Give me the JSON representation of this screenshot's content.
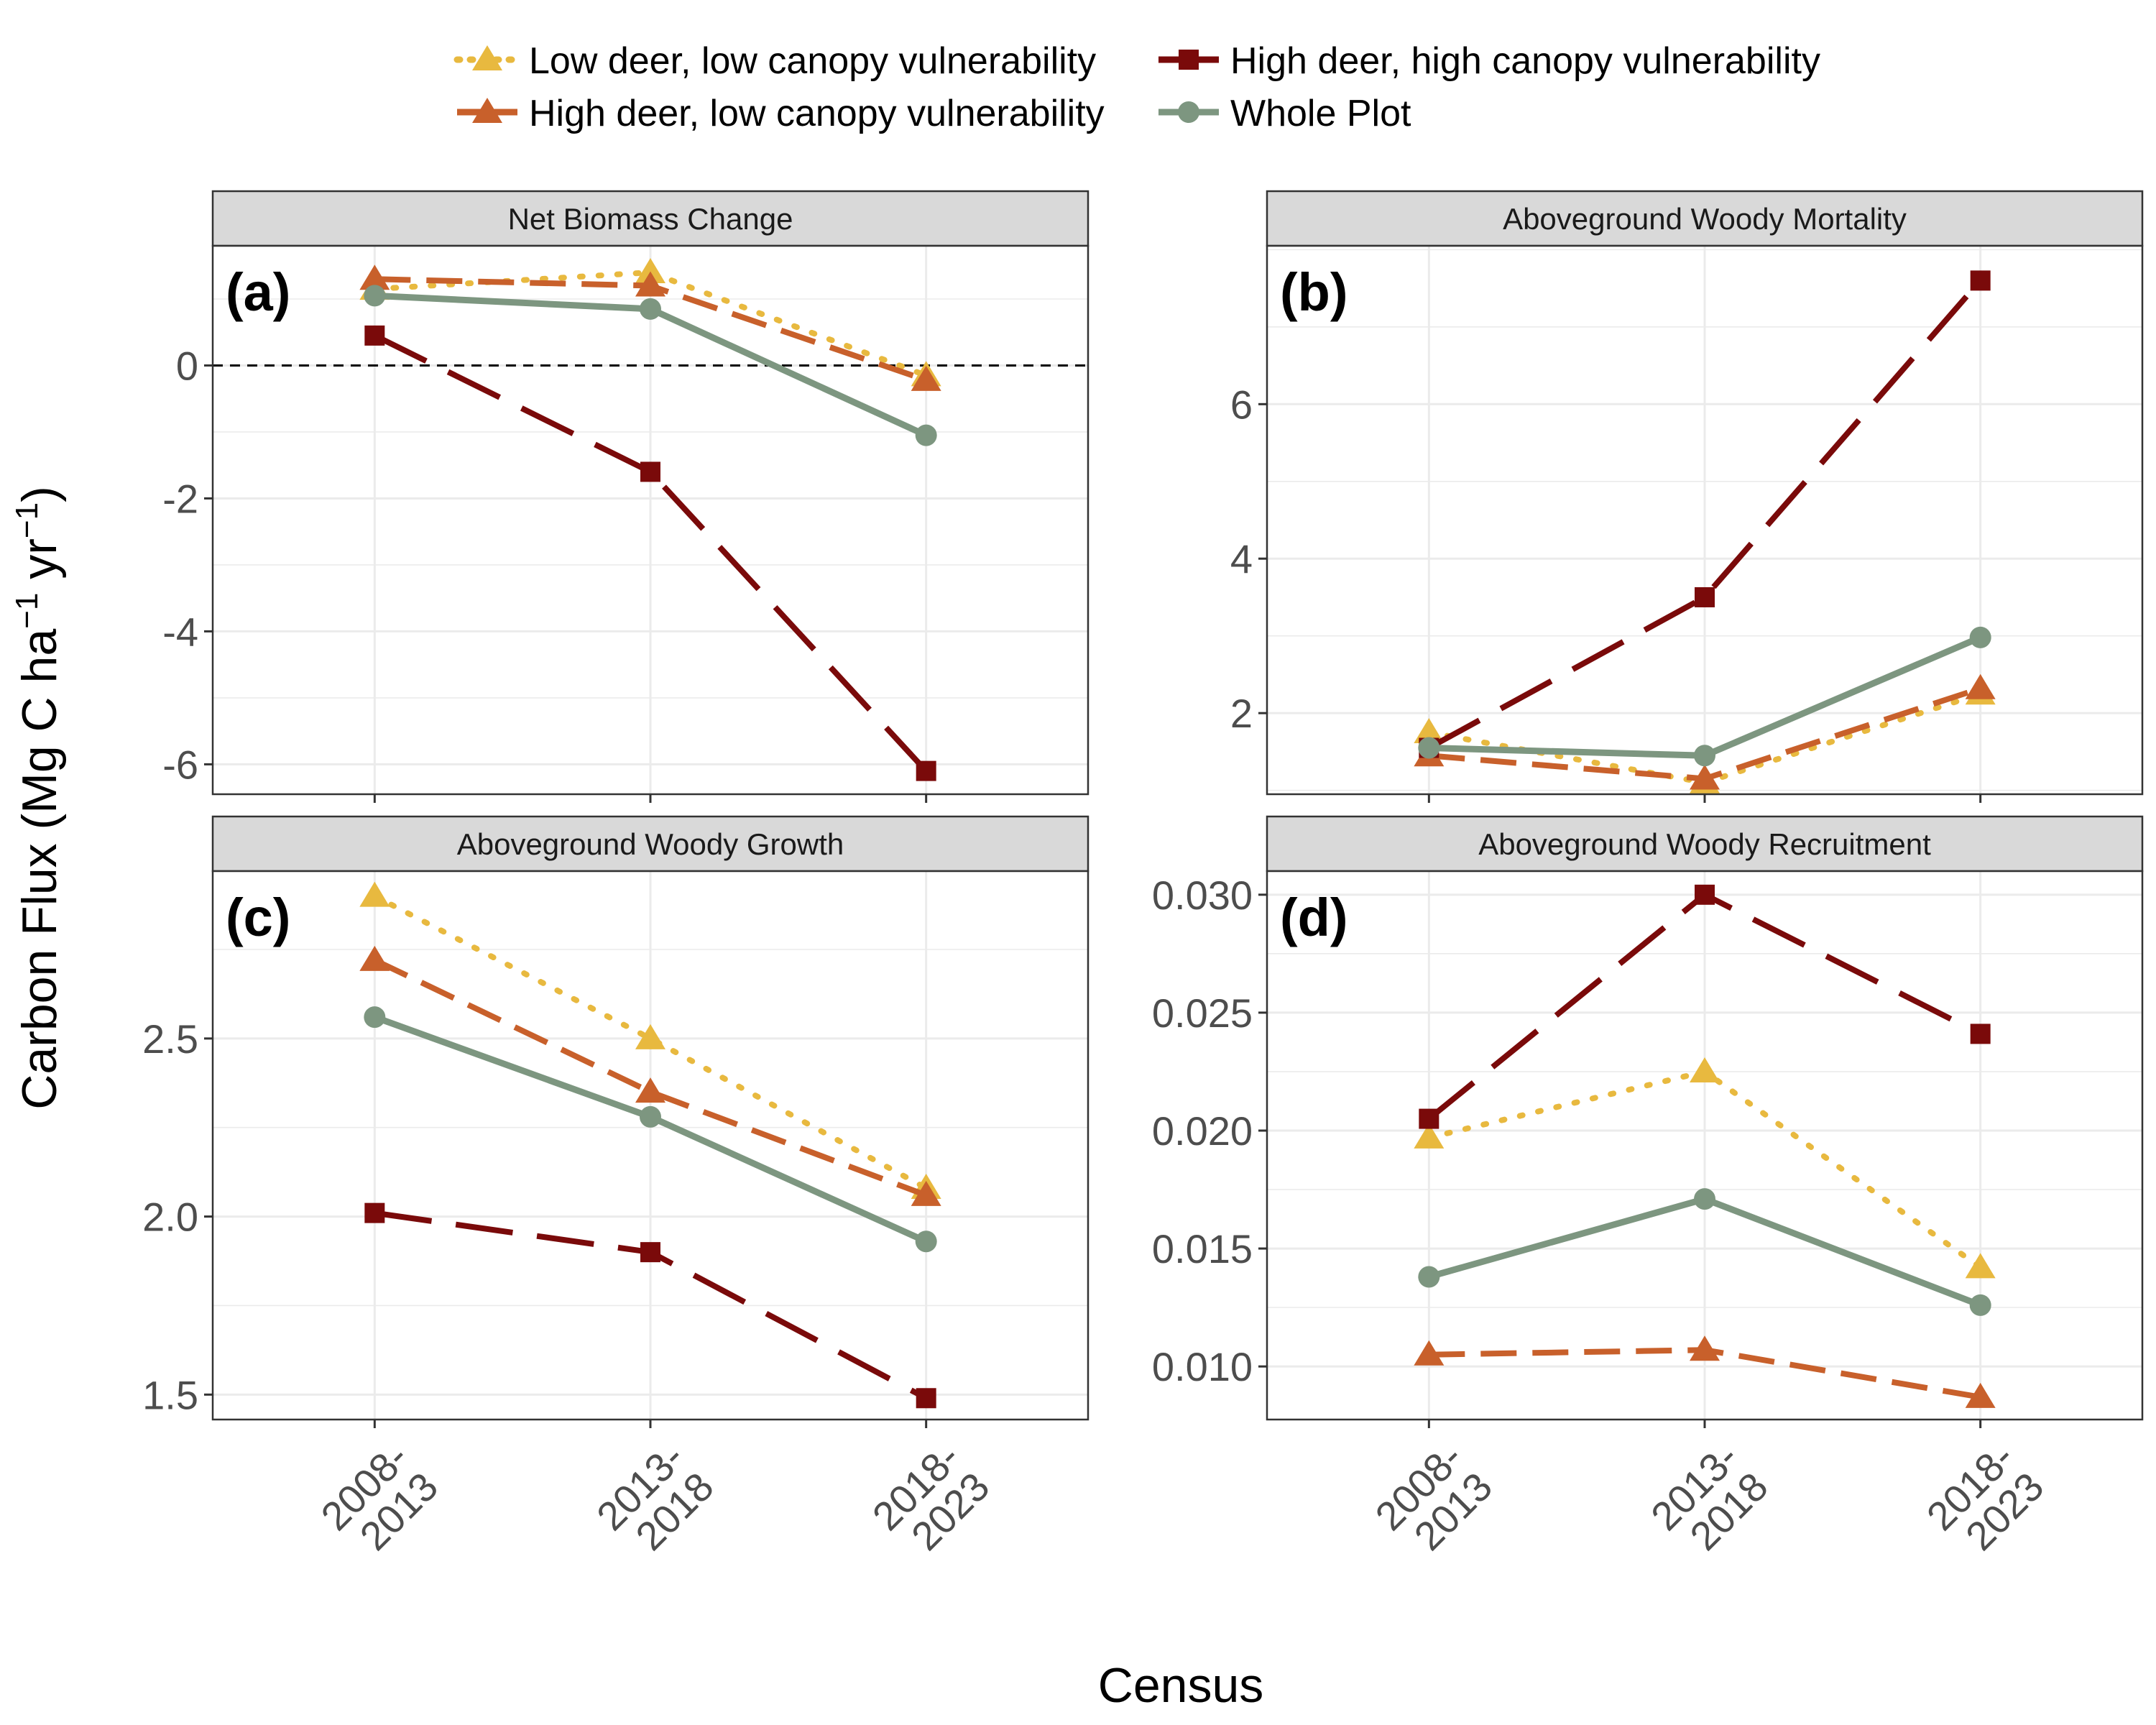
{
  "figure": {
    "ylabel_main": "Carbon Flux (Mg C ha",
    "ylabel_exp1": "−1",
    "ylabel_mid": " yr",
    "ylabel_exp2": "−1",
    "ylabel_end": ")",
    "xlabel": "Census"
  },
  "legend": {
    "position": "top",
    "items": [
      {
        "key": "lowlow",
        "label": "Low deer, low canopy vulnerability"
      },
      {
        "key": "highhigh",
        "label": "High deer, high canopy vulnerability"
      },
      {
        "key": "highlow",
        "label": "High deer, low canopy vulnerability"
      },
      {
        "key": "whole",
        "label": "Whole Plot"
      }
    ]
  },
  "series_styles": {
    "lowlow": {
      "color": "#E8B93F",
      "dash": "dotted",
      "marker": "triangle"
    },
    "highlow": {
      "color": "#C8602B",
      "dash": "dashed",
      "marker": "triangle"
    },
    "highhigh": {
      "color": "#7A0A0A",
      "dash": "longdash",
      "marker": "square"
    },
    "whole": {
      "color": "#7D9680",
      "dash": "solid",
      "marker": "circle"
    }
  },
  "x_categories": [
    [
      "2008-",
      "2013"
    ],
    [
      "2013-",
      "2018"
    ],
    [
      "2018-",
      "2023"
    ]
  ],
  "chart_data": [
    {
      "type": "line",
      "tag": "(a)",
      "title": "Net Biomass Change",
      "ylim": [
        -6.45,
        1.8
      ],
      "yticks": [
        "-6",
        "-4",
        "-2",
        "0"
      ],
      "ytick_values": [
        -6,
        -4,
        -2,
        0
      ],
      "hline": 0,
      "series": [
        {
          "key": "lowlow",
          "values": [
            1.15,
            1.4,
            -0.15
          ]
        },
        {
          "key": "highlow",
          "values": [
            1.3,
            1.2,
            -0.22
          ]
        },
        {
          "key": "highhigh",
          "values": [
            0.45,
            -1.6,
            -6.1
          ]
        },
        {
          "key": "whole",
          "values": [
            1.05,
            0.85,
            -1.05
          ]
        }
      ]
    },
    {
      "type": "line",
      "tag": "(b)",
      "title": "Aboveground Woody Mortality",
      "ylim": [
        0.95,
        8.05
      ],
      "yticks": [
        "2",
        "4",
        "6"
      ],
      "ytick_values": [
        2,
        4,
        6
      ],
      "series": [
        {
          "key": "lowlow",
          "values": [
            1.75,
            1.1,
            2.25
          ]
        },
        {
          "key": "highlow",
          "values": [
            1.45,
            1.15,
            2.32
          ]
        },
        {
          "key": "highhigh",
          "values": [
            1.55,
            3.5,
            7.6
          ]
        },
        {
          "key": "whole",
          "values": [
            1.55,
            1.45,
            2.98
          ]
        }
      ]
    },
    {
      "type": "line",
      "tag": "(c)",
      "title": "Aboveground Woody Growth",
      "ylim": [
        1.43,
        2.97
      ],
      "yticks": [
        "1.5",
        "2.0",
        "2.5"
      ],
      "ytick_values": [
        1.5,
        2.0,
        2.5
      ],
      "series": [
        {
          "key": "lowlow",
          "values": [
            2.9,
            2.5,
            2.08
          ]
        },
        {
          "key": "highlow",
          "values": [
            2.72,
            2.35,
            2.06
          ]
        },
        {
          "key": "highhigh",
          "values": [
            2.01,
            1.9,
            1.49
          ]
        },
        {
          "key": "whole",
          "values": [
            2.56,
            2.28,
            1.93
          ]
        }
      ]
    },
    {
      "type": "line",
      "tag": "(d)",
      "title": "Aboveground Woody Recruitment",
      "ylim": [
        0.00775,
        0.031
      ],
      "yticks": [
        "0.010",
        "0.015",
        "0.020",
        "0.025",
        "0.030"
      ],
      "ytick_values": [
        0.01,
        0.015,
        0.02,
        0.025,
        0.03
      ],
      "series": [
        {
          "key": "lowlow",
          "values": [
            0.0197,
            0.0225,
            0.0142
          ]
        },
        {
          "key": "highlow",
          "values": [
            0.0105,
            0.0107,
            0.0087
          ]
        },
        {
          "key": "highhigh",
          "values": [
            0.0205,
            0.03,
            0.0241
          ]
        },
        {
          "key": "whole",
          "values": [
            0.0138,
            0.0171,
            0.0126
          ]
        }
      ]
    }
  ]
}
